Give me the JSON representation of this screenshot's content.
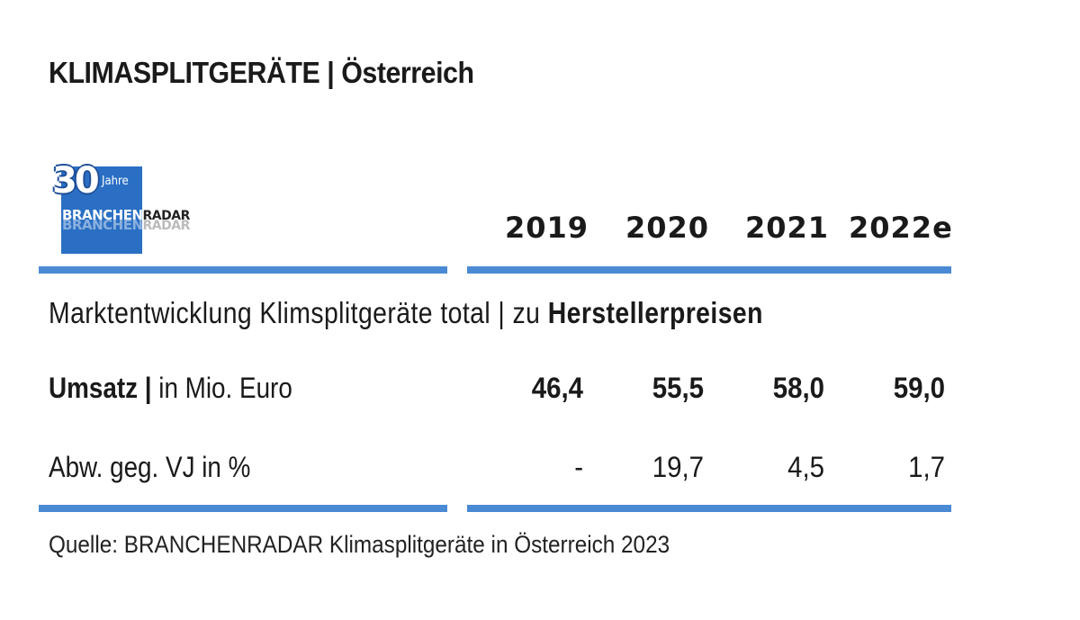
{
  "title": "KLIMASPLITGERÄTE | Österreich",
  "logo": {
    "number": "30",
    "jahre": "Jahre",
    "word_part1": "BRANCHEN",
    "word_part2": "RADAR"
  },
  "subtitle_normal": "Marktentwicklung Klimsplitgeräte total | zu ",
  "subtitle_bold": "Herstellerpreisen",
  "source": "Quelle: BRANCHENRADAR Klimasplitgeräte in Österreich 2023",
  "colors": {
    "rule": "#4a8ad4",
    "logo_blue": "#2a6fc4",
    "text": "#1a1a1a"
  },
  "chart_data": {
    "type": "table",
    "columns": [
      "2019",
      "2020",
      "2021",
      "2022e"
    ],
    "rows": [
      {
        "label_bold": "Umsatz |",
        "label_normal": " in Mio. Euro",
        "values": [
          "46,4",
          "55,5",
          "58,0",
          "59,0"
        ],
        "bold": true
      },
      {
        "label_bold": "",
        "label_normal": "Abw. geg. VJ in %",
        "values": [
          "-",
          "19,7",
          "4,5",
          "1,7"
        ],
        "bold": false
      }
    ]
  }
}
